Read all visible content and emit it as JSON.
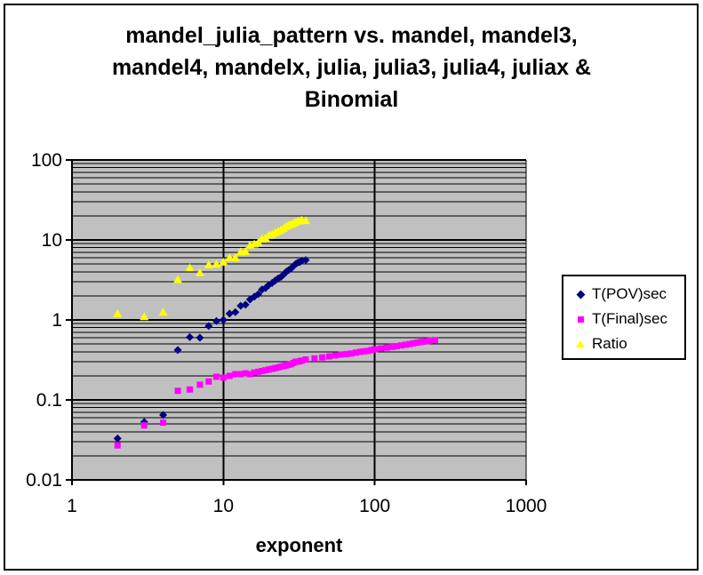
{
  "chart_data": {
    "type": "scatter",
    "title": "mandel_julia_pattern vs. mandel, mandel3, mandel4, mandelx, julia, julia3, julia4, juliax & Binomial",
    "title_lines": [
      "mandel_julia_pattern vs. mandel, mandel3,",
      "mandel4, mandelx, julia, julia3, julia4, juliax &",
      "Binomial"
    ],
    "xlabel": "exponent",
    "ylabel": "",
    "x_scale": "log",
    "y_scale": "log",
    "xlim": [
      1,
      1000
    ],
    "ylim": [
      0.01,
      100
    ],
    "x_ticks": [
      1,
      10,
      100,
      1000
    ],
    "y_ticks": [
      100,
      10,
      1,
      0.1,
      0.01
    ],
    "x_tick_labels": [
      "1",
      "10",
      "100",
      "1000"
    ],
    "y_tick_labels": [
      "100",
      "10",
      "1",
      "0.1",
      "0.01"
    ],
    "grid": {
      "horizontal": "major+minor",
      "vertical": "major",
      "color": "#000000"
    },
    "plot_bg": "#c0c0c0",
    "legend_position": "right",
    "series": [
      {
        "name": "T(POV)sec",
        "marker": "diamond",
        "color": "#000080",
        "points": [
          [
            2,
            0.033
          ],
          [
            3,
            0.053
          ],
          [
            4,
            0.065
          ],
          [
            5,
            0.42
          ],
          [
            6,
            0.61
          ],
          [
            7,
            0.6
          ],
          [
            8,
            0.84
          ],
          [
            9,
            0.97
          ],
          [
            10,
            1.0
          ],
          [
            11,
            1.2
          ],
          [
            12,
            1.25
          ],
          [
            13,
            1.5
          ],
          [
            14,
            1.55
          ],
          [
            15,
            1.8
          ],
          [
            16,
            1.95
          ],
          [
            17,
            2.1
          ],
          [
            18,
            2.4
          ],
          [
            19,
            2.5
          ],
          [
            20,
            2.75
          ],
          [
            21,
            2.9
          ],
          [
            22,
            3.1
          ],
          [
            23,
            3.3
          ],
          [
            24,
            3.45
          ],
          [
            25,
            3.7
          ],
          [
            26,
            4.0
          ],
          [
            27,
            4.2
          ],
          [
            28,
            4.4
          ],
          [
            29,
            4.7
          ],
          [
            30,
            5.0
          ],
          [
            31,
            5.2
          ],
          [
            32,
            5.3
          ],
          [
            33,
            5.5
          ],
          [
            35,
            5.6
          ]
        ]
      },
      {
        "name": "T(Final)sec",
        "marker": "square",
        "color": "#ff00ff",
        "points": [
          [
            2,
            0.027
          ],
          [
            3,
            0.048
          ],
          [
            4,
            0.052
          ],
          [
            5,
            0.13
          ],
          [
            6,
            0.135
          ],
          [
            7,
            0.155
          ],
          [
            8,
            0.17
          ],
          [
            9,
            0.195
          ],
          [
            10,
            0.19
          ],
          [
            11,
            0.2
          ],
          [
            12,
            0.21
          ],
          [
            13,
            0.21
          ],
          [
            14,
            0.215
          ],
          [
            15,
            0.21
          ],
          [
            16,
            0.22
          ],
          [
            17,
            0.225
          ],
          [
            18,
            0.23
          ],
          [
            19,
            0.235
          ],
          [
            20,
            0.24
          ],
          [
            21,
            0.245
          ],
          [
            22,
            0.25
          ],
          [
            23,
            0.255
          ],
          [
            24,
            0.26
          ],
          [
            25,
            0.265
          ],
          [
            26,
            0.27
          ],
          [
            27,
            0.275
          ],
          [
            28,
            0.28
          ],
          [
            29,
            0.29
          ],
          [
            30,
            0.3
          ],
          [
            31,
            0.3
          ],
          [
            32,
            0.305
          ],
          [
            33,
            0.31
          ],
          [
            35,
            0.32
          ],
          [
            40,
            0.33
          ],
          [
            45,
            0.34
          ],
          [
            50,
            0.35
          ],
          [
            55,
            0.36
          ],
          [
            60,
            0.37
          ],
          [
            65,
            0.375
          ],
          [
            70,
            0.38
          ],
          [
            75,
            0.39
          ],
          [
            80,
            0.4
          ],
          [
            85,
            0.405
          ],
          [
            90,
            0.41
          ],
          [
            95,
            0.42
          ],
          [
            100,
            0.43
          ],
          [
            110,
            0.44
          ],
          [
            120,
            0.45
          ],
          [
            130,
            0.46
          ],
          [
            140,
            0.47
          ],
          [
            150,
            0.48
          ],
          [
            160,
            0.49
          ],
          [
            170,
            0.5
          ],
          [
            180,
            0.51
          ],
          [
            190,
            0.52
          ],
          [
            200,
            0.53
          ],
          [
            210,
            0.535
          ],
          [
            220,
            0.54
          ],
          [
            230,
            0.55
          ],
          [
            240,
            0.555
          ],
          [
            250,
            0.56
          ]
        ]
      },
      {
        "name": "Ratio",
        "marker": "triangle",
        "color": "#ffff00",
        "points": [
          [
            2,
            1.2
          ],
          [
            3,
            1.1
          ],
          [
            4,
            1.25
          ],
          [
            5,
            3.2
          ],
          [
            6,
            4.5
          ],
          [
            7,
            3.9
          ],
          [
            8,
            4.9
          ],
          [
            9,
            5.0
          ],
          [
            10,
            5.3
          ],
          [
            11,
            6.0
          ],
          [
            12,
            6.0
          ],
          [
            13,
            7.1
          ],
          [
            14,
            7.2
          ],
          [
            15,
            8.6
          ],
          [
            16,
            8.9
          ],
          [
            17,
            9.3
          ],
          [
            18,
            10.4
          ],
          [
            19,
            10.6
          ],
          [
            20,
            11.5
          ],
          [
            21,
            11.8
          ],
          [
            22,
            12.4
          ],
          [
            23,
            12.9
          ],
          [
            24,
            13.3
          ],
          [
            25,
            14.0
          ],
          [
            26,
            14.8
          ],
          [
            27,
            15.3
          ],
          [
            28,
            15.7
          ],
          [
            29,
            16.2
          ],
          [
            30,
            16.7
          ],
          [
            31,
            17.3
          ],
          [
            32,
            17.4
          ],
          [
            33,
            17.7
          ],
          [
            35,
            17.5
          ]
        ]
      }
    ]
  }
}
